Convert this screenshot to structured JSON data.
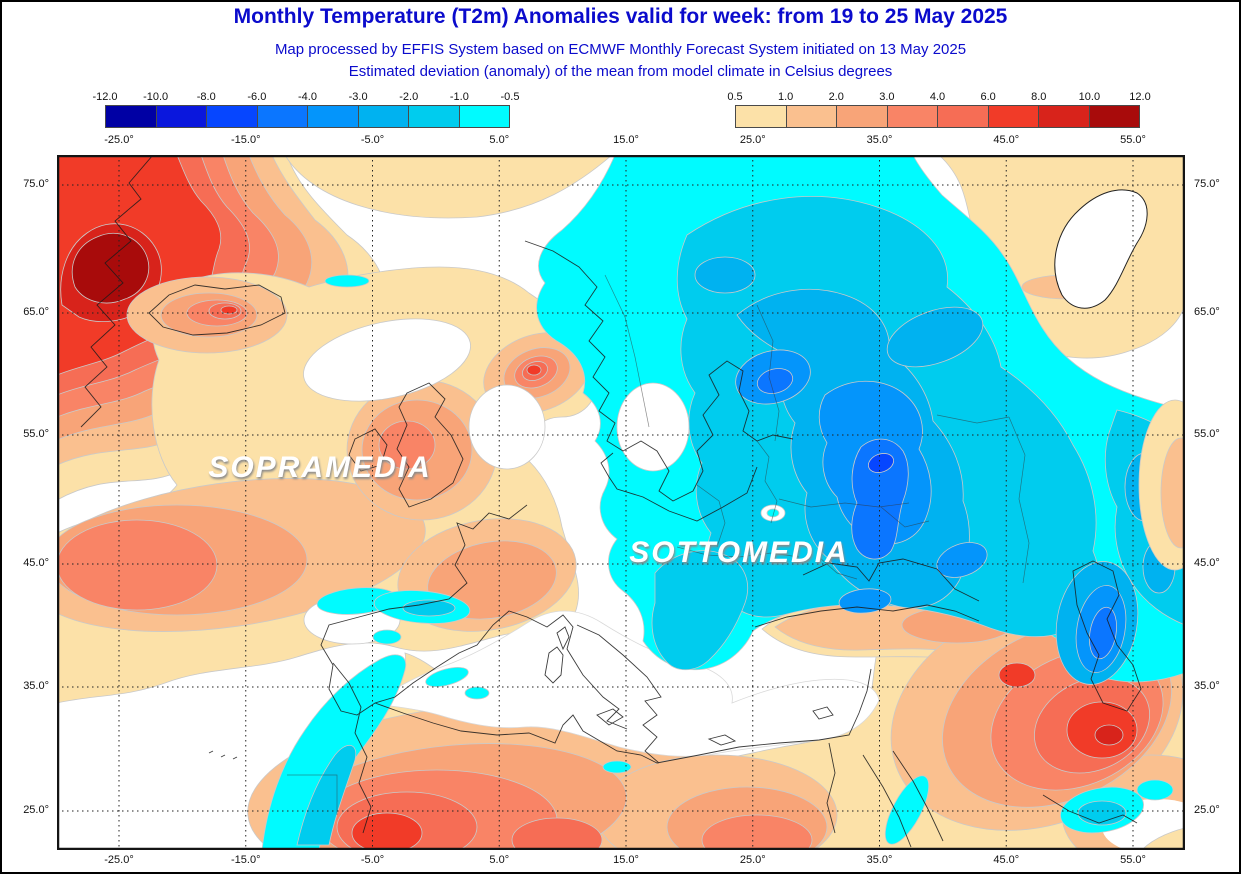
{
  "header": {
    "title": "Monthly Temperature (T2m) Anomalies valid for week: from 19 to 25 May 2025",
    "subtitle1": "Map processed by EFFIS System based on ECMWF Monthly Forecast System initiated on 13 May 2025",
    "subtitle2": "Estimated deviation (anomaly) of the mean from model climate in Celsius degrees",
    "text_color": "#0b0bcc"
  },
  "legend": {
    "negative": {
      "ticks": [
        "-12.0",
        "-10.0",
        "-8.0",
        "-6.0",
        "-4.0",
        "-3.0",
        "-2.0",
        "-1.0",
        "-0.5"
      ],
      "colors": [
        "#0000a4",
        "#0a17dd",
        "#0646ff",
        "#0b76ff",
        "#0495fb",
        "#00b2f0",
        "#00ccee",
        "#00fbff"
      ]
    },
    "positive": {
      "ticks": [
        "0.5",
        "1.0",
        "2.0",
        "3.0",
        "4.0",
        "6.0",
        "8.0",
        "10.0",
        "12.0"
      ],
      "colors": [
        "#fce1a8",
        "#fac08f",
        "#f8a478",
        "#f98466",
        "#f66d55",
        "#f13b28",
        "#d8231b",
        "#a80b0b"
      ]
    }
  },
  "map": {
    "axis": {
      "lon": [
        "-25.0°",
        "-15.0°",
        "-5.0°",
        "5.0°",
        "15.0°",
        "25.0°",
        "35.0°",
        "45.0°",
        "55.0°"
      ],
      "lat": [
        "75.0°",
        "65.0°",
        "55.0°",
        "45.0°",
        "35.0°",
        "25.0°"
      ]
    },
    "overlays": [
      {
        "text": "SOPRAMEDIA"
      },
      {
        "text": "SOTTOMEDIA"
      }
    ]
  }
}
